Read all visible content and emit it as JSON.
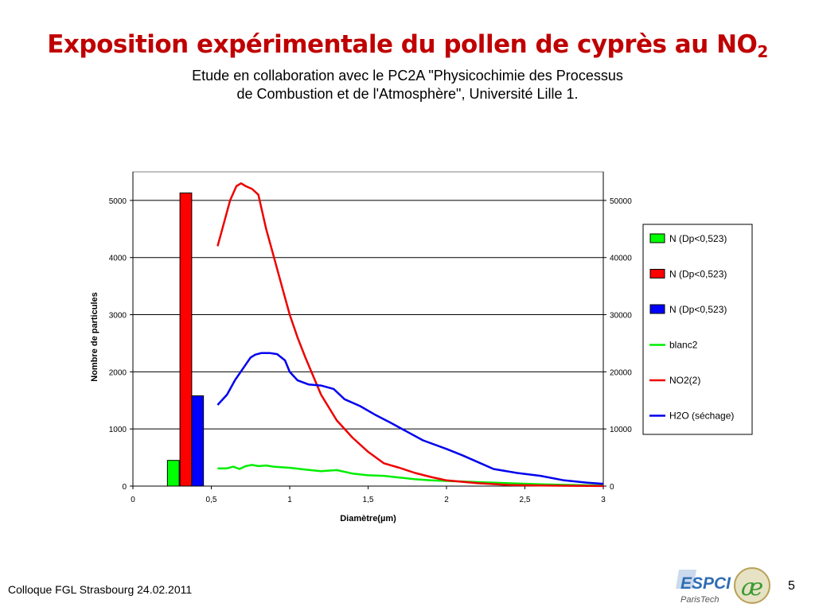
{
  "slide": {
    "title_main": "Exposition expérimentale du pollen de cyprès au NO",
    "title_sub": "2",
    "subtitle_line1": "Etude en collaboration avec le PC2A \"Physicochimie des Processus",
    "subtitle_line2": "de Combustion et de l'Atmosphère\", Université Lille 1.",
    "footer": "Colloque FGL Strasbourg  24.02.2011",
    "page_number": "5",
    "logo_text": "ESPCI",
    "logo_subtext": "ParisTech",
    "logo2_text": "æ"
  },
  "chart_data": {
    "type": "bar+line",
    "xlabel": "Diamètre(µm)",
    "ylabel": "Nombre de particules",
    "xlim": [
      0,
      3
    ],
    "ylim_left": [
      0,
      5500
    ],
    "ylim_right": [
      0,
      55000
    ],
    "x_ticks": [
      "0",
      "0,5",
      "1",
      "1,5",
      "2",
      "2,5",
      "3"
    ],
    "y_left_ticks": [
      "0",
      "1000",
      "2000",
      "3000",
      "4000",
      "5000"
    ],
    "y_right_ticks": [
      "0",
      "10000",
      "20000",
      "30000",
      "40000",
      "50000"
    ],
    "grid": "horizontal",
    "legend_position": "right",
    "bars": [
      {
        "name": "N (Dp<0,523)",
        "color": "#00ff00",
        "x": 0.22,
        "width": 0.075,
        "value": 450
      },
      {
        "name": "N (Dp<0,523)",
        "color": "#ff0000",
        "x": 0.3,
        "width": 0.075,
        "value": 5130
      },
      {
        "name": "N (Dp<0,523)",
        "color": "#0000ff",
        "x": 0.375,
        "width": 0.075,
        "value": 1580
      }
    ],
    "series": [
      {
        "name": "blanc2",
        "color": "#00ee00",
        "axis": "right",
        "x": [
          0.54,
          0.6,
          0.64,
          0.68,
          0.72,
          0.76,
          0.8,
          0.85,
          0.9,
          1.0,
          1.1,
          1.2,
          1.3,
          1.4,
          1.5,
          1.6,
          1.7,
          1.8,
          1.9,
          2.0,
          2.2,
          2.4,
          2.6,
          2.8,
          3.0
        ],
        "values": [
          3100,
          3100,
          3400,
          3000,
          3500,
          3700,
          3500,
          3600,
          3400,
          3200,
          2900,
          2600,
          2800,
          2200,
          1900,
          1800,
          1500,
          1200,
          1000,
          900,
          700,
          500,
          300,
          200,
          100
        ]
      },
      {
        "name": "NO2(2)",
        "color": "#ee0000",
        "axis": "right",
        "x": [
          0.54,
          0.58,
          0.62,
          0.66,
          0.69,
          0.72,
          0.76,
          0.8,
          0.85,
          0.9,
          0.95,
          1.0,
          1.05,
          1.1,
          1.2,
          1.3,
          1.4,
          1.5,
          1.6,
          1.7,
          1.8,
          1.9,
          2.0,
          2.2,
          2.4,
          2.6,
          2.8,
          3.0
        ],
        "values": [
          42000,
          46000,
          50000,
          52500,
          53000,
          52500,
          52000,
          51000,
          45000,
          40000,
          35000,
          30000,
          26000,
          22500,
          16000,
          11500,
          8500,
          6000,
          4000,
          3200,
          2300,
          1600,
          1000,
          500,
          200,
          100,
          50,
          20
        ]
      },
      {
        "name": "H2O (séchage)",
        "color": "#0000ee",
        "axis": "right",
        "x": [
          0.54,
          0.6,
          0.65,
          0.7,
          0.75,
          0.78,
          0.82,
          0.87,
          0.92,
          0.97,
          1.0,
          1.05,
          1.12,
          1.2,
          1.28,
          1.35,
          1.45,
          1.55,
          1.65,
          1.75,
          1.85,
          2.0,
          2.1,
          2.2,
          2.3,
          2.45,
          2.6,
          2.75,
          2.9,
          3.0
        ],
        "values": [
          14200,
          16000,
          18500,
          20500,
          22500,
          23000,
          23300,
          23300,
          23100,
          22000,
          20000,
          18500,
          17800,
          17600,
          17000,
          15200,
          14000,
          12400,
          11000,
          9500,
          8000,
          6500,
          5400,
          4200,
          3000,
          2300,
          1800,
          1000,
          600,
          400
        ]
      }
    ]
  }
}
